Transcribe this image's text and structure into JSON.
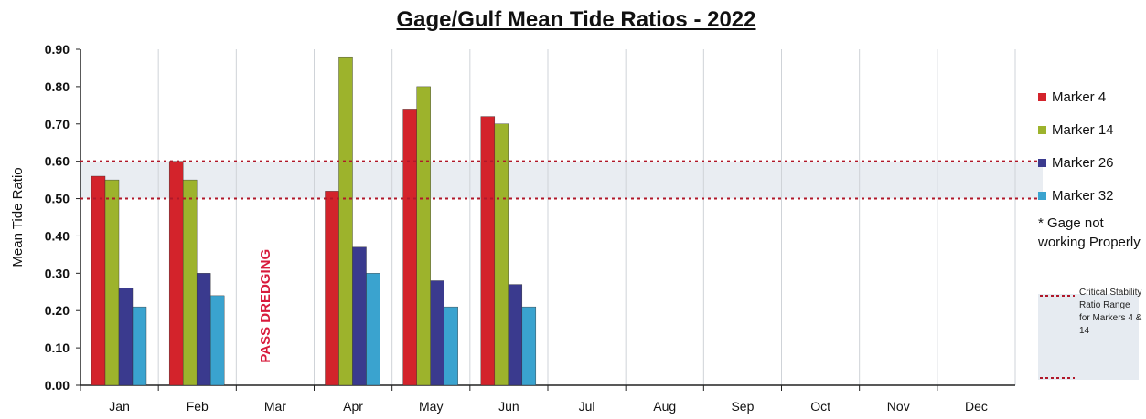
{
  "chart_data": {
    "type": "bar",
    "title": "Gage/Gulf Mean Tide Ratios - 2022",
    "ylabel": "Mean Tide Ratio",
    "xlabel": "",
    "ylim": [
      0,
      0.9
    ],
    "yticks": [
      "0.00",
      "0.10",
      "0.20",
      "0.30",
      "0.40",
      "0.50",
      "0.60",
      "0.70",
      "0.80",
      "0.90"
    ],
    "grid": "vertical gridlines",
    "legend_position": "right",
    "categories": [
      "Jan",
      "Feb",
      "Mar",
      "Apr",
      "May",
      "Jun",
      "Jul",
      "Aug",
      "Sep",
      "Oct",
      "Nov",
      "Dec"
    ],
    "series": [
      {
        "name": "Marker 4",
        "color": "#d3232b",
        "values": [
          0.56,
          0.6,
          null,
          0.52,
          0.74,
          0.72,
          null,
          null,
          null,
          null,
          null,
          null
        ]
      },
      {
        "name": "Marker 14",
        "color": "#9db32c",
        "values": [
          0.55,
          0.55,
          null,
          0.88,
          0.8,
          0.7,
          null,
          null,
          null,
          null,
          null,
          null
        ]
      },
      {
        "name": "Marker 26",
        "color": "#3a3a8e",
        "values": [
          0.26,
          0.3,
          null,
          0.37,
          0.28,
          0.27,
          null,
          null,
          null,
          null,
          null,
          null
        ]
      },
      {
        "name": "Marker 32",
        "color": "#3aa3cf",
        "values": [
          0.21,
          0.24,
          null,
          0.3,
          0.21,
          0.21,
          null,
          null,
          null,
          null,
          null,
          null
        ]
      }
    ],
    "reference_lines": [
      0.5,
      0.6
    ],
    "reference_band": [
      0.5,
      0.6
    ],
    "annotation": "PASS DREDGING",
    "annotation_color": "#d81b3c"
  },
  "legend_note": "* Gage not working Properly",
  "legend_critical": "Critical Stability Ratio Range for Markers 4 & 14"
}
